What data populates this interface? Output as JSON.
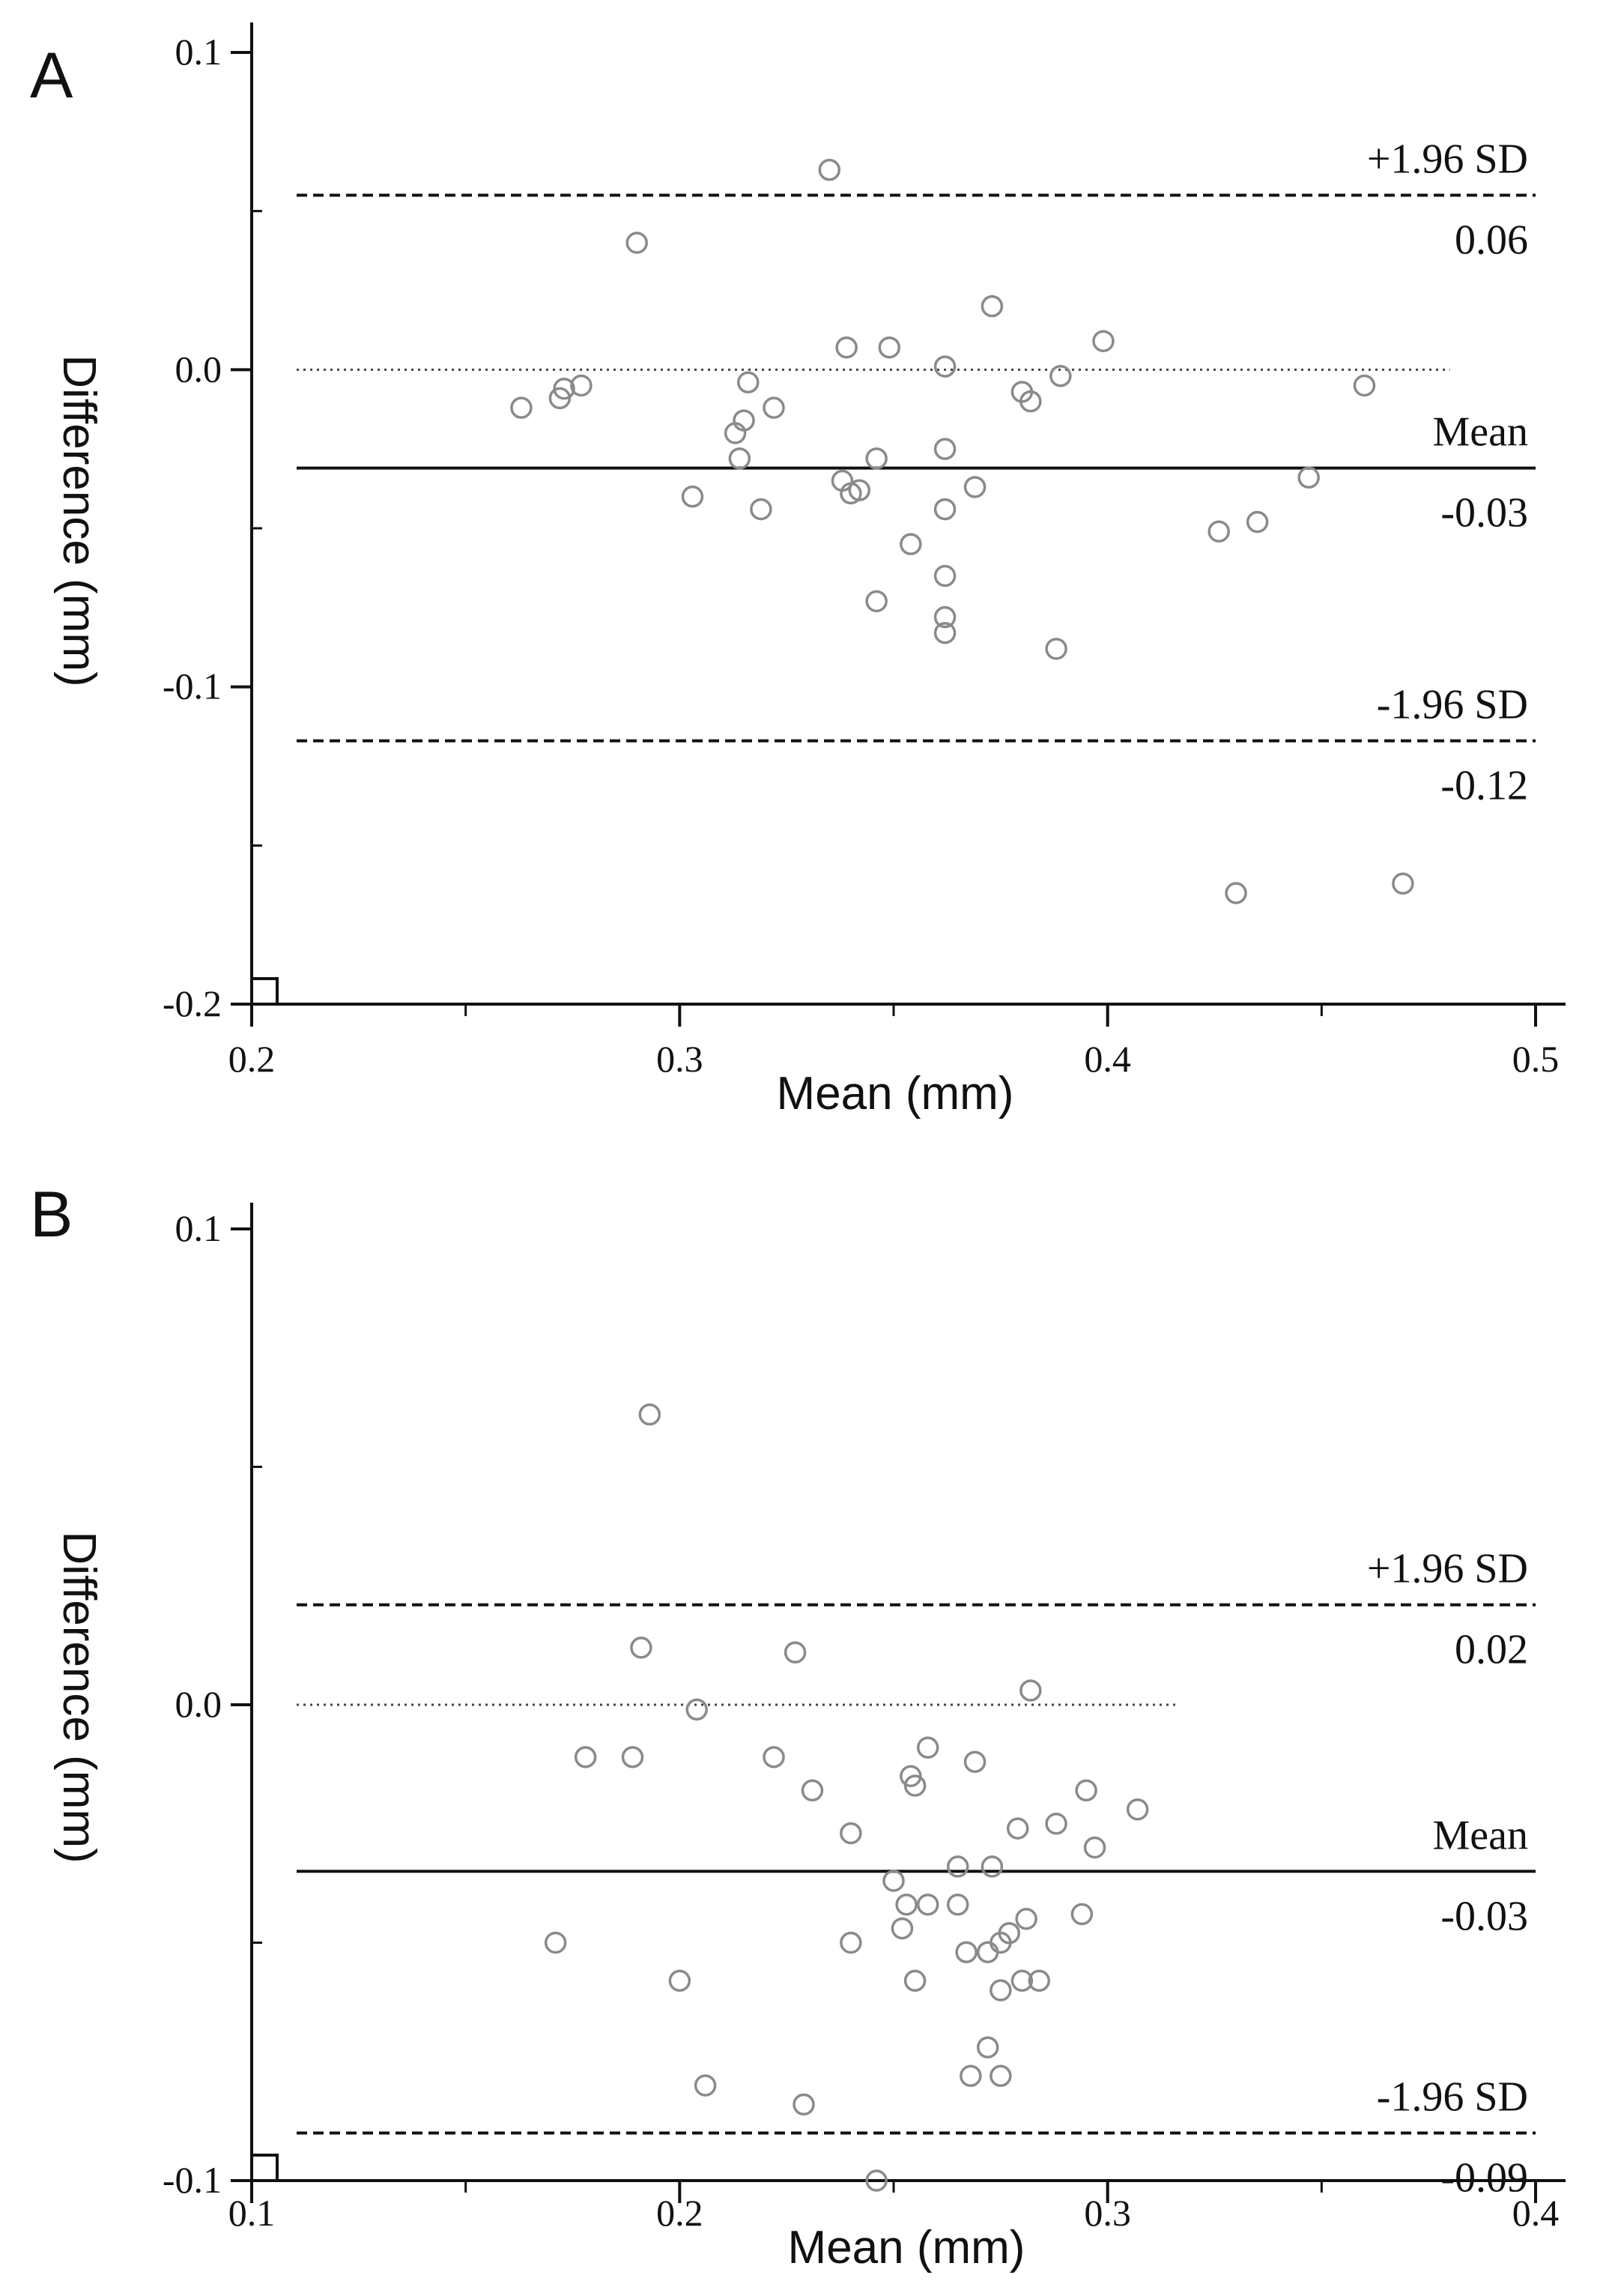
{
  "chart_data": [
    {
      "type": "scatter",
      "panel": "A",
      "xlabel": "Mean (mm)",
      "ylabel": "Difference (mm)",
      "xlim": [
        0.2,
        0.5
      ],
      "ylim": [
        -0.2,
        0.1
      ],
      "xticks": [
        "0.2",
        "0.3",
        "0.4",
        "0.5"
      ],
      "yticks": [
        "0.1",
        "0.0",
        "-0.1",
        "-0.2"
      ],
      "reference_lines": [
        {
          "name": "upper",
          "value": 0.055,
          "style": "dashed",
          "label": "+1.96 SD",
          "value_label": "0.06"
        },
        {
          "name": "zero",
          "value": 0.0,
          "style": "dotted",
          "x_end": 0.48
        },
        {
          "name": "mean",
          "value": -0.031,
          "style": "solid",
          "label": "Mean",
          "value_label": "-0.03"
        },
        {
          "name": "lower",
          "value": -0.117,
          "style": "dashed",
          "label": "-1.96 SD",
          "value_label": "-0.12"
        }
      ],
      "points": [
        [
          0.335,
          0.063
        ],
        [
          0.29,
          0.04
        ],
        [
          0.373,
          0.02
        ],
        [
          0.399,
          0.009
        ],
        [
          0.339,
          0.007
        ],
        [
          0.349,
          0.007
        ],
        [
          0.362,
          0.001
        ],
        [
          0.389,
          -0.002
        ],
        [
          0.38,
          -0.007
        ],
        [
          0.382,
          -0.01
        ],
        [
          0.46,
          -0.005
        ],
        [
          0.263,
          -0.012
        ],
        [
          0.272,
          -0.009
        ],
        [
          0.273,
          -0.006
        ],
        [
          0.277,
          -0.005
        ],
        [
          0.316,
          -0.004
        ],
        [
          0.322,
          -0.012
        ],
        [
          0.315,
          -0.016
        ],
        [
          0.313,
          -0.02
        ],
        [
          0.314,
          -0.028
        ],
        [
          0.346,
          -0.028
        ],
        [
          0.362,
          -0.025
        ],
        [
          0.303,
          -0.04
        ],
        [
          0.319,
          -0.044
        ],
        [
          0.338,
          -0.035
        ],
        [
          0.34,
          -0.039
        ],
        [
          0.342,
          -0.038
        ],
        [
          0.362,
          -0.044
        ],
        [
          0.369,
          -0.037
        ],
        [
          0.354,
          -0.055
        ],
        [
          0.447,
          -0.034
        ],
        [
          0.426,
          -0.051
        ],
        [
          0.435,
          -0.048
        ],
        [
          0.362,
          -0.065
        ],
        [
          0.346,
          -0.073
        ],
        [
          0.362,
          -0.078
        ],
        [
          0.362,
          -0.083
        ],
        [
          0.388,
          -0.088
        ],
        [
          0.43,
          -0.165
        ],
        [
          0.469,
          -0.162
        ]
      ]
    },
    {
      "type": "scatter",
      "panel": "B",
      "xlabel": "Mean (mm)",
      "ylabel": "Difference (mm)",
      "xlim": [
        0.1,
        0.4
      ],
      "ylim": [
        -0.1,
        0.1
      ],
      "xticks": [
        "0.1",
        "0.2",
        "0.3",
        "0.4"
      ],
      "yticks": [
        "0.1",
        "0.0",
        "-0.1"
      ],
      "reference_lines": [
        {
          "name": "upper",
          "value": 0.021,
          "style": "dashed",
          "label": "+1.96 SD",
          "value_label": "0.02"
        },
        {
          "name": "zero",
          "value": 0.0,
          "style": "dotted",
          "x_end": 0.316
        },
        {
          "name": "mean",
          "value": -0.035,
          "style": "solid",
          "label": "Mean",
          "value_label": "-0.03"
        },
        {
          "name": "lower",
          "value": -0.09,
          "style": "dashed",
          "label": "-1.96 SD",
          "value_label": "-0.09"
        }
      ],
      "points": [
        [
          0.193,
          0.061
        ],
        [
          0.191,
          0.012
        ],
        [
          0.227,
          0.011
        ],
        [
          0.282,
          0.003
        ],
        [
          0.204,
          -0.001
        ],
        [
          0.178,
          -0.011
        ],
        [
          0.189,
          -0.011
        ],
        [
          0.222,
          -0.011
        ],
        [
          0.258,
          -0.009
        ],
        [
          0.269,
          -0.012
        ],
        [
          0.254,
          -0.015
        ],
        [
          0.255,
          -0.017
        ],
        [
          0.231,
          -0.018
        ],
        [
          0.295,
          -0.018
        ],
        [
          0.307,
          -0.022
        ],
        [
          0.288,
          -0.025
        ],
        [
          0.279,
          -0.026
        ],
        [
          0.24,
          -0.027
        ],
        [
          0.297,
          -0.03
        ],
        [
          0.265,
          -0.034
        ],
        [
          0.273,
          -0.034
        ],
        [
          0.25,
          -0.037
        ],
        [
          0.253,
          -0.042
        ],
        [
          0.258,
          -0.042
        ],
        [
          0.265,
          -0.042
        ],
        [
          0.281,
          -0.045
        ],
        [
          0.294,
          -0.044
        ],
        [
          0.171,
          -0.05
        ],
        [
          0.24,
          -0.05
        ],
        [
          0.252,
          -0.047
        ],
        [
          0.267,
          -0.052
        ],
        [
          0.272,
          -0.052
        ],
        [
          0.275,
          -0.05
        ],
        [
          0.277,
          -0.048
        ],
        [
          0.2,
          -0.058
        ],
        [
          0.255,
          -0.058
        ],
        [
          0.275,
          -0.06
        ],
        [
          0.28,
          -0.058
        ],
        [
          0.284,
          -0.058
        ],
        [
          0.272,
          -0.072
        ],
        [
          0.268,
          -0.078
        ],
        [
          0.275,
          -0.078
        ],
        [
          0.206,
          -0.08
        ],
        [
          0.229,
          -0.084
        ],
        [
          0.246,
          -0.1
        ]
      ]
    }
  ]
}
